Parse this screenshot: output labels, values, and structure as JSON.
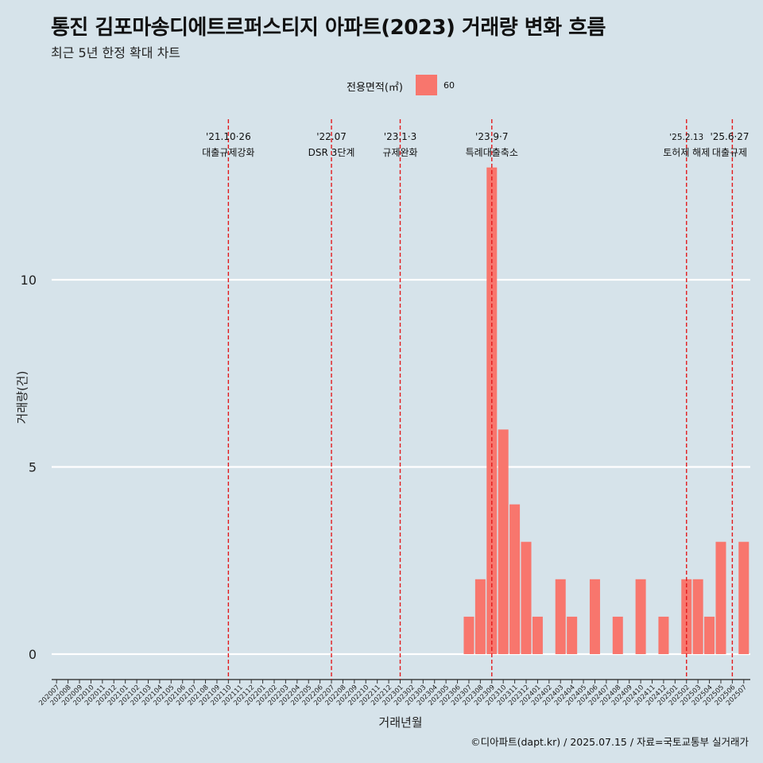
{
  "title": "통진 김포마송디에트르퍼스티지 아파트(2023) 거래량 변화 흐름",
  "subtitle": "최근 5년 한정 확대 차트",
  "caption": "©디아파트(dapt.kr) / 2025.07.15 / 자료=국토교통부 실거래가",
  "colors": {
    "background": "#d6e3ea",
    "bar": "#f8766d",
    "grid": "#ffffff",
    "event_line": "#e31a1c"
  },
  "chart_data": {
    "type": "bar",
    "title": "통진 김포마송디에트르퍼스티지 아파트(2023) 거래량 변화 흐름",
    "subtitle": "최근 5년 한정 확대 차트",
    "xlabel": "거래년월",
    "ylabel": "거래량(건)",
    "ylim": [
      0,
      14
    ],
    "yticks": [
      0,
      5,
      10
    ],
    "grid": true,
    "legend": {
      "title": "전용면적(㎡)",
      "entries": [
        "60"
      ],
      "position": "top"
    },
    "categories": [
      "202007",
      "202008",
      "202009",
      "202010",
      "202011",
      "202012",
      "202101",
      "202102",
      "202103",
      "202104",
      "202105",
      "202106",
      "202107",
      "202108",
      "202109",
      "202110",
      "202111",
      "202112",
      "202201",
      "202202",
      "202203",
      "202204",
      "202205",
      "202206",
      "202207",
      "202208",
      "202209",
      "202210",
      "202211",
      "202212",
      "202301",
      "202302",
      "202303",
      "202304",
      "202305",
      "202306",
      "202307",
      "202308",
      "202309",
      "202310",
      "202311",
      "202312",
      "202401",
      "202402",
      "202403",
      "202404",
      "202405",
      "202406",
      "202407",
      "202408",
      "202409",
      "202410",
      "202411",
      "202412",
      "202501",
      "202502",
      "202503",
      "202504",
      "202505",
      "202506",
      "202507"
    ],
    "series": [
      {
        "name": "60",
        "values": [
          0,
          0,
          0,
          0,
          0,
          0,
          0,
          0,
          0,
          0,
          0,
          0,
          0,
          0,
          0,
          0,
          0,
          0,
          0,
          0,
          0,
          0,
          0,
          0,
          0,
          0,
          0,
          0,
          0,
          0,
          0,
          0,
          0,
          0,
          0,
          0,
          1,
          2,
          13,
          6,
          4,
          3,
          1,
          0,
          2,
          1,
          0,
          2,
          0,
          1,
          0,
          2,
          0,
          1,
          0,
          2,
          2,
          1,
          3,
          0,
          3
        ]
      }
    ],
    "annotations": [
      {
        "category": "202110",
        "date": "'21.10·26",
        "label": "대출규제강화"
      },
      {
        "category": "202207",
        "date": "'22.07",
        "label": "DSR 3단계"
      },
      {
        "category": "202301",
        "date": "'23.1·3",
        "label": "규제완화"
      },
      {
        "category": "202309",
        "date": "'23.9·7",
        "label": "특례대출축소"
      },
      {
        "category": "202502",
        "date": "'25.2.13",
        "label": "토허제 해제"
      },
      {
        "category": "202506",
        "date": "'25.6·27",
        "label": "대출규제"
      }
    ]
  }
}
